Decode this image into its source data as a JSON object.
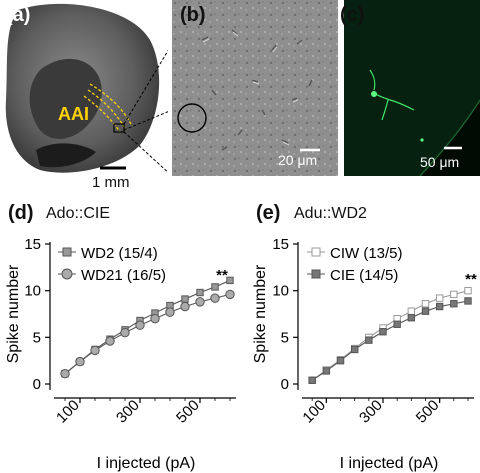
{
  "panels": {
    "a": {
      "letter": "(a)",
      "region_label": "AAI",
      "scale_label": "1 mm"
    },
    "b": {
      "letter": "(b)",
      "scale_label": "20 μm"
    },
    "c": {
      "letter": "(c)",
      "scale_label": "50 μm"
    },
    "d": {
      "letter": "(d)",
      "title": "Ado::CIE"
    },
    "e": {
      "letter": "(e)",
      "title": "Adu::WD2"
    }
  },
  "chart_data": [
    {
      "type": "line",
      "title": "Ado::CIE",
      "xlabel": "I injected (pA)",
      "ylabel": "Spike number",
      "xlim": [
        0,
        600
      ],
      "ylim": [
        0,
        15
      ],
      "xticks": [
        100,
        300,
        500
      ],
      "yticks": [
        0,
        5,
        10,
        15
      ],
      "x": [
        50,
        100,
        150,
        200,
        250,
        300,
        350,
        400,
        450,
        500,
        550,
        600
      ],
      "series": [
        {
          "name": "WD2 (15/4)",
          "marker": "square",
          "color": "#555555",
          "fill": "#999999",
          "values": [
            1.1,
            2.4,
            3.7,
            4.8,
            5.8,
            6.8,
            7.6,
            8.4,
            9.1,
            9.8,
            10.4,
            11.1
          ]
        },
        {
          "name": "WD21 (16/5)",
          "marker": "circle",
          "color": "#555555",
          "fill": "#aaaaaa",
          "values": [
            1.1,
            2.4,
            3.6,
            4.6,
            5.5,
            6.3,
            7.0,
            7.7,
            8.3,
            8.8,
            9.2,
            9.6
          ]
        }
      ],
      "annotation": "**",
      "legend_position": "top-left"
    },
    {
      "type": "line",
      "title": "Adu::WD2",
      "xlabel": "I injected (pA)",
      "ylabel": "Spike number",
      "xlim": [
        0,
        600
      ],
      "ylim": [
        0,
        15
      ],
      "xticks": [
        100,
        300,
        500
      ],
      "yticks": [
        0,
        5,
        10,
        15
      ],
      "x": [
        50,
        100,
        150,
        200,
        250,
        300,
        350,
        400,
        450,
        500,
        550,
        600
      ],
      "series": [
        {
          "name": "CIW (13/5)",
          "marker": "square",
          "color": "#999999",
          "fill": "#ffffff",
          "values": [
            0.4,
            1.5,
            2.6,
            3.8,
            5.0,
            6.0,
            7.0,
            7.8,
            8.6,
            9.2,
            9.6,
            10.0
          ]
        },
        {
          "name": "CIE (14/5)",
          "marker": "square",
          "color": "#555555",
          "fill": "#777777",
          "values": [
            0.4,
            1.4,
            2.5,
            3.7,
            4.7,
            5.6,
            6.4,
            7.1,
            7.8,
            8.3,
            8.6,
            8.9
          ]
        }
      ],
      "annotation": "**",
      "legend_position": "top-left"
    }
  ]
}
